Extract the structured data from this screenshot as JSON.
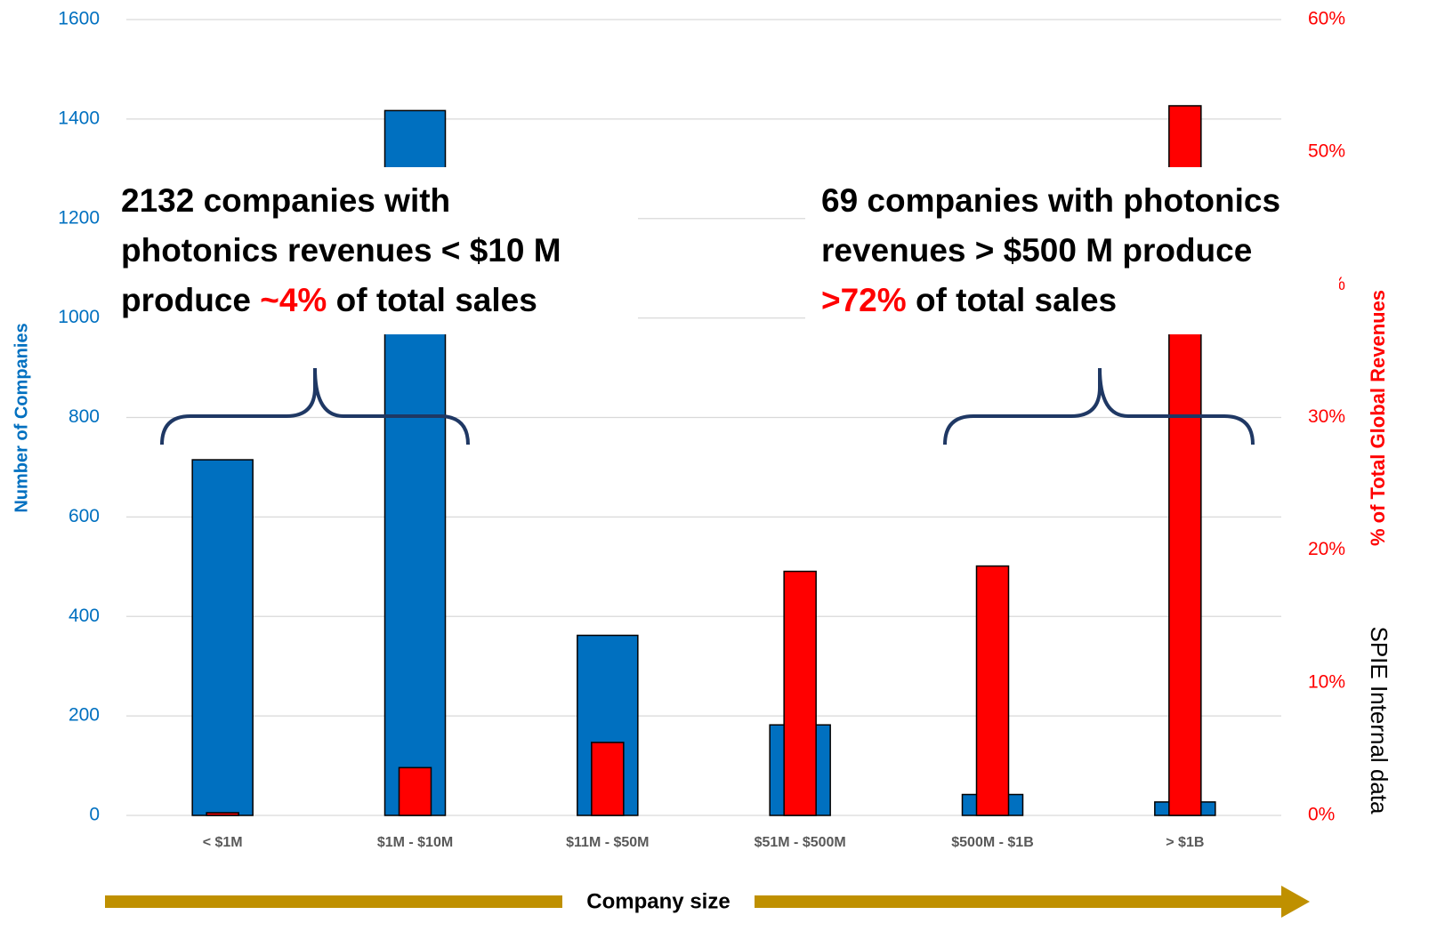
{
  "chart_data": {
    "type": "bar",
    "categories": [
      "< $1M",
      "$1M - $10M",
      "$11M - $50M",
      "$51M - $500M",
      "$500M - $1B",
      "> $1B"
    ],
    "series": [
      {
        "name": "Number of Companies",
        "color": "#0070c0",
        "values": [
          715,
          1417,
          362,
          182,
          42,
          27
        ]
      },
      {
        "name": "% of Total Global Revenues",
        "color": "#ff0000",
        "axis": "y2",
        "values": [
          0.2,
          3.6,
          5.5,
          18.4,
          18.8,
          53.5
        ]
      }
    ],
    "ylabel": "Number of Companies",
    "y2label": "% of Total Global Revenues",
    "xlabel": "Company size",
    "ylim": [
      0,
      1600
    ],
    "yticks": [
      0,
      200,
      400,
      600,
      800,
      1000,
      1200,
      1400,
      1600
    ],
    "y2lim": [
      0,
      60
    ],
    "y2ticks": [
      {
        "value": 0,
        "label": "0%"
      },
      {
        "value": 10,
        "label": "10%"
      },
      {
        "value": 20,
        "label": "20%"
      },
      {
        "value": 30,
        "label": "30%"
      },
      {
        "value": 40,
        "label": "40%"
      },
      {
        "value": 50,
        "label": "50%"
      },
      {
        "value": 60,
        "label": "60%"
      }
    ],
    "grid": true,
    "source": "SPIE Internal data",
    "highlight_color": "#ff0000",
    "annotations": [
      {
        "lines": [
          [
            {
              "text": "2132 companies with"
            }
          ],
          [
            {
              "text": "photonics revenues < $10 M"
            }
          ],
          [
            {
              "text": "produce "
            },
            {
              "text": "~4%",
              "highlight": true
            },
            {
              "text": " of total sales"
            }
          ]
        ]
      },
      {
        "lines": [
          [
            {
              "text": "69 companies with photonics"
            }
          ],
          [
            {
              "text": "revenues > $500 M produce"
            }
          ],
          [
            {
              "text": ">72%",
              "highlight": true
            },
            {
              "text": " of total sales"
            }
          ]
        ]
      }
    ]
  }
}
